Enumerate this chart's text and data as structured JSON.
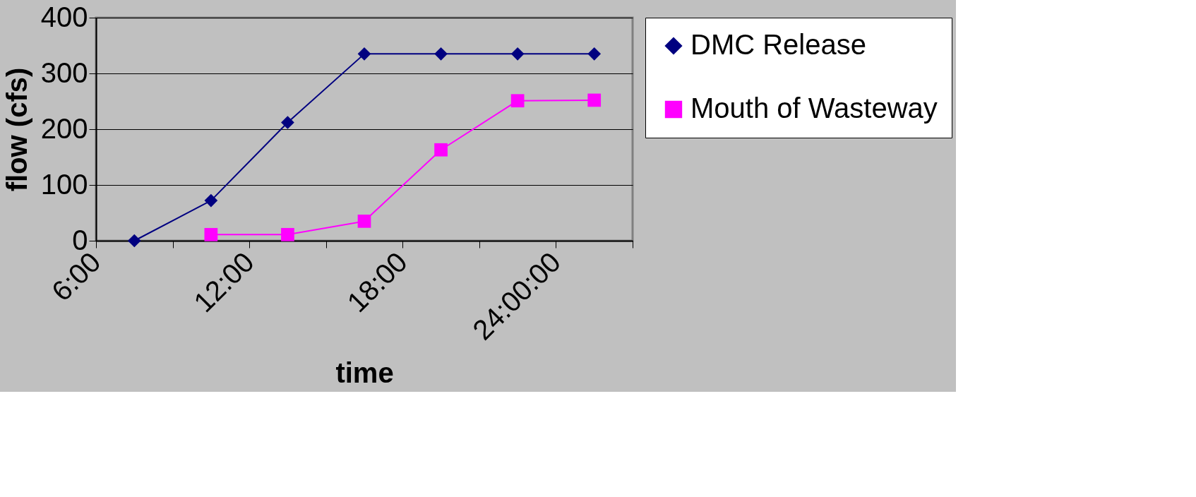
{
  "chart_data": {
    "type": "line",
    "xlabel": "time",
    "ylabel": "flow (cfs)",
    "xlim": [
      6,
      27
    ],
    "xticks": [
      {
        "value": 6,
        "label": "6:00"
      },
      {
        "value": 9,
        "label": null
      },
      {
        "value": 12,
        "label": "12:00"
      },
      {
        "value": 15,
        "label": null
      },
      {
        "value": 18,
        "label": "18:00"
      },
      {
        "value": 21,
        "label": null
      },
      {
        "value": 24,
        "label": "24:00:00"
      },
      {
        "value": 27,
        "label": null
      }
    ],
    "ylim": [
      0,
      400
    ],
    "yticks": [
      0,
      100,
      200,
      300,
      400
    ],
    "grid": "y",
    "legend": "right",
    "line_style": "solid",
    "series": [
      {
        "name": "DMC Release",
        "color": "#000080",
        "marker": "diamond",
        "x": [
          7.5,
          10.5,
          13.5,
          16.5,
          19.5,
          22.5,
          25.5
        ],
        "values": [
          0,
          72,
          212,
          335,
          335,
          335,
          335
        ]
      },
      {
        "name": "Mouth of Wasteway",
        "color": "#ff00ff",
        "marker": "square",
        "x": [
          10.5,
          13.5,
          16.5,
          19.5,
          22.5,
          25.5
        ],
        "values": [
          11,
          11,
          35,
          163,
          251,
          252
        ]
      }
    ]
  }
}
